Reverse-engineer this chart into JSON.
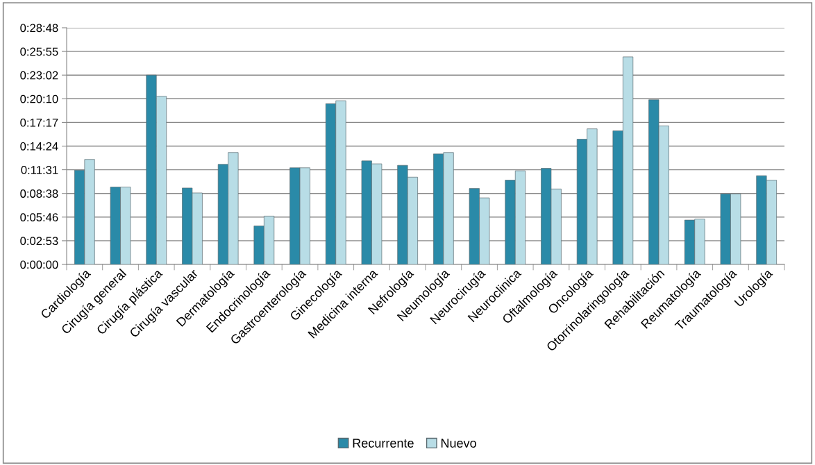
{
  "chart_data": {
    "type": "bar",
    "categories": [
      "Cardiología",
      "Cirugía general",
      "Cirugía plástica",
      "Cirugía vascular",
      "Dermatología",
      "Endocrinología",
      "Gastroenterología",
      "Ginecología",
      "Medicina interna",
      "Nefrología",
      "Neumología",
      "Neurocirugía",
      "Neuroclinica",
      "Oftalmología",
      "Oncología",
      "Otorrinolaringología",
      "Rehabilitación",
      "Reumatología",
      "Traumatología",
      "Urología"
    ],
    "series": [
      {
        "name": "Recurrente",
        "color": "#2a8aa8",
        "values": [
          0.191,
          0.157,
          0.384,
          0.155,
          0.203,
          0.078,
          0.196,
          0.326,
          0.21,
          0.201,
          0.224,
          0.154,
          0.171,
          0.195,
          0.254,
          0.271,
          0.334,
          0.09,
          0.143,
          0.18
        ]
      },
      {
        "name": "Nuevo",
        "color": "#b8dde6",
        "values": [
          0.213,
          0.157,
          0.341,
          0.145,
          0.227,
          0.098,
          0.196,
          0.332,
          0.204,
          0.177,
          0.227,
          0.135,
          0.19,
          0.153,
          0.275,
          0.421,
          0.281,
          0.092,
          0.143,
          0.171
        ]
      }
    ],
    "ylim": [
      0,
      0.48
    ],
    "yticks": [
      {
        "value": 0,
        "label": "0:00:00"
      },
      {
        "value": 0.048,
        "label": "0:02:53"
      },
      {
        "value": 0.096,
        "label": "0:05:46"
      },
      {
        "value": 0.144,
        "label": "0:08:38"
      },
      {
        "value": 0.192,
        "label": "0:11:31"
      },
      {
        "value": 0.24,
        "label": "0:14:24"
      },
      {
        "value": 0.288,
        "label": "0:17:17"
      },
      {
        "value": 0.336,
        "label": "0:20:10"
      },
      {
        "value": 0.384,
        "label": "0:23:02"
      },
      {
        "value": 0.432,
        "label": "0:25:55"
      },
      {
        "value": 0.48,
        "label": "0:28:48"
      }
    ],
    "grid": "y",
    "legend": "bottom"
  }
}
